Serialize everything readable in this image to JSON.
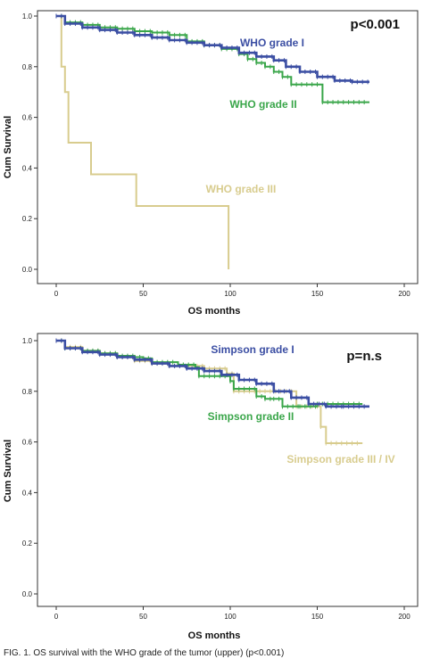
{
  "chart_data": [
    {
      "type": "line",
      "subtype": "kaplan-meier",
      "xlabel": "OS months",
      "ylabel": "Cum Survival",
      "xlim": [
        0,
        200
      ],
      "ylim": [
        0,
        1
      ],
      "xticks": [
        "0",
        "50",
        "100",
        "150",
        "200"
      ],
      "yticks": [
        "0.0",
        "0.2",
        "0.4",
        "0.6",
        "0.8",
        "1.0"
      ],
      "annotation": "p<0.001",
      "series": [
        {
          "name": "WHO grade I",
          "color": "#3b4ea3",
          "points": [
            [
              0,
              1.0
            ],
            [
              5,
              0.97
            ],
            [
              15,
              0.955
            ],
            [
              25,
              0.945
            ],
            [
              35,
              0.935
            ],
            [
              45,
              0.925
            ],
            [
              55,
              0.915
            ],
            [
              65,
              0.905
            ],
            [
              75,
              0.895
            ],
            [
              85,
              0.885
            ],
            [
              95,
              0.875
            ],
            [
              105,
              0.855
            ],
            [
              115,
              0.84
            ],
            [
              125,
              0.825
            ],
            [
              132,
              0.8
            ],
            [
              140,
              0.78
            ],
            [
              150,
              0.76
            ],
            [
              160,
              0.745
            ],
            [
              170,
              0.74
            ],
            [
              180,
              0.74
            ]
          ]
        },
        {
          "name": "WHO grade II",
          "color": "#3aa64a",
          "points": [
            [
              0,
              1.0
            ],
            [
              5,
              0.975
            ],
            [
              15,
              0.965
            ],
            [
              25,
              0.955
            ],
            [
              35,
              0.95
            ],
            [
              45,
              0.94
            ],
            [
              55,
              0.935
            ],
            [
              65,
              0.925
            ],
            [
              75,
              0.9
            ],
            [
              85,
              0.885
            ],
            [
              95,
              0.87
            ],
            [
              105,
              0.85
            ],
            [
              110,
              0.83
            ],
            [
              115,
              0.815
            ],
            [
              120,
              0.8
            ],
            [
              125,
              0.78
            ],
            [
              130,
              0.76
            ],
            [
              135,
              0.73
            ],
            [
              153,
              0.73
            ],
            [
              153,
              0.66
            ],
            [
              180,
              0.66
            ]
          ]
        },
        {
          "name": "WHO grade III",
          "color": "#d8cc8e",
          "points": [
            [
              0,
              1.0
            ],
            [
              3,
              1.0
            ],
            [
              3,
              0.8
            ],
            [
              5,
              0.8
            ],
            [
              5,
              0.7
            ],
            [
              7,
              0.7
            ],
            [
              7,
              0.5
            ],
            [
              20,
              0.5
            ],
            [
              20,
              0.375
            ],
            [
              46,
              0.375
            ],
            [
              46,
              0.25
            ],
            [
              99,
              0.25
            ],
            [
              99,
              0.0
            ]
          ]
        }
      ]
    },
    {
      "type": "line",
      "subtype": "kaplan-meier",
      "xlabel": "OS months",
      "ylabel": "Cum Survival",
      "xlim": [
        0,
        200
      ],
      "ylim": [
        0,
        1
      ],
      "xticks": [
        "0",
        "50",
        "100",
        "150",
        "200"
      ],
      "yticks": [
        "0.0",
        "0.2",
        "0.4",
        "0.6",
        "0.8",
        "1.0"
      ],
      "annotation": "p=n.s",
      "series": [
        {
          "name": "Simpson grade I",
          "color": "#3b4ea3",
          "points": [
            [
              0,
              1.0
            ],
            [
              5,
              0.97
            ],
            [
              15,
              0.955
            ],
            [
              25,
              0.945
            ],
            [
              35,
              0.935
            ],
            [
              45,
              0.925
            ],
            [
              55,
              0.91
            ],
            [
              65,
              0.9
            ],
            [
              75,
              0.89
            ],
            [
              85,
              0.88
            ],
            [
              95,
              0.865
            ],
            [
              105,
              0.845
            ],
            [
              115,
              0.83
            ],
            [
              125,
              0.8
            ],
            [
              135,
              0.775
            ],
            [
              145,
              0.75
            ],
            [
              155,
              0.74
            ],
            [
              165,
              0.74
            ],
            [
              180,
              0.74
            ]
          ]
        },
        {
          "name": "Simpson grade II",
          "color": "#3aa64a",
          "points": [
            [
              0,
              1.0
            ],
            [
              5,
              0.97
            ],
            [
              15,
              0.96
            ],
            [
              25,
              0.95
            ],
            [
              35,
              0.94
            ],
            [
              45,
              0.935
            ],
            [
              50,
              0.93
            ],
            [
              55,
              0.915
            ],
            [
              70,
              0.905
            ],
            [
              80,
              0.895
            ],
            [
              82,
              0.86
            ],
            [
              100,
              0.84
            ],
            [
              102,
              0.81
            ],
            [
              115,
              0.78
            ],
            [
              120,
              0.77
            ],
            [
              125,
              0.77
            ],
            [
              130,
              0.74
            ],
            [
              140,
              0.74
            ],
            [
              150,
              0.75
            ],
            [
              176,
              0.75
            ]
          ]
        },
        {
          "name": "Simpson grade III / IV",
          "color": "#d8cc8e",
          "points": [
            [
              0,
              1.0
            ],
            [
              5,
              0.975
            ],
            [
              15,
              0.96
            ],
            [
              25,
              0.95
            ],
            [
              35,
              0.935
            ],
            [
              45,
              0.92
            ],
            [
              55,
              0.91
            ],
            [
              65,
              0.9
            ],
            [
              75,
              0.9
            ],
            [
              85,
              0.89
            ],
            [
              98,
              0.87
            ],
            [
              102,
              0.8
            ],
            [
              138,
              0.8
            ],
            [
              138,
              0.74
            ],
            [
              152,
              0.74
            ],
            [
              152,
              0.66
            ],
            [
              155,
              0.66
            ],
            [
              155,
              0.595
            ],
            [
              176,
              0.595
            ]
          ]
        }
      ]
    }
  ],
  "caption": "FIG. 1. OS survival with the WHO grade of the tumor (upper) (p<0.001)"
}
